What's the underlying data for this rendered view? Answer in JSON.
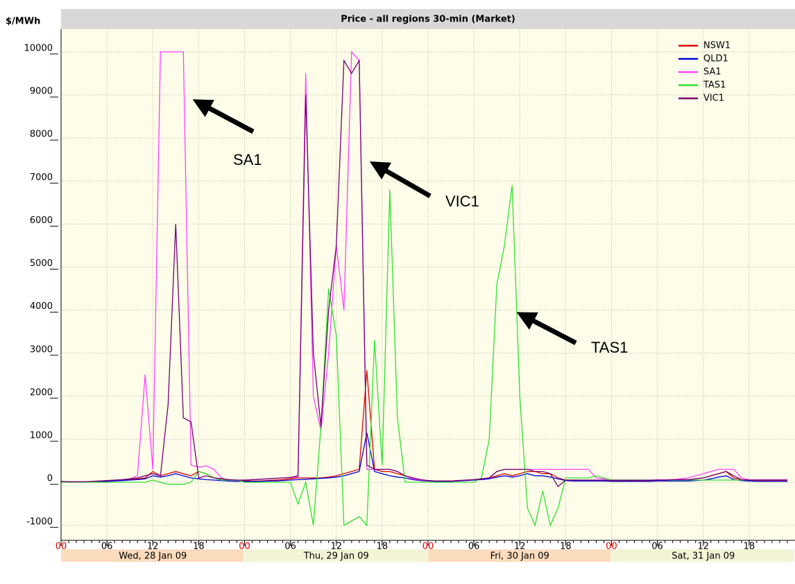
{
  "chart_data": {
    "type": "line",
    "title": "Price - all regions 30-min (Market)",
    "y_label": "$/MWh",
    "x": [
      0,
      1,
      2,
      3,
      4,
      5,
      6,
      7,
      8,
      9,
      10,
      11,
      12,
      13,
      14,
      15,
      16,
      17,
      18,
      19,
      20,
      21,
      22,
      23,
      24,
      25,
      26,
      27,
      28,
      29,
      30,
      31,
      32,
      33,
      34,
      35,
      36,
      37,
      38,
      39,
      40,
      41,
      42,
      43,
      44,
      45,
      46,
      47,
      48,
      49,
      50,
      51,
      52,
      53,
      54,
      55,
      56,
      57,
      58,
      59,
      60,
      61,
      62,
      63,
      64,
      65,
      66,
      67,
      68,
      69,
      70,
      71,
      72,
      73,
      74,
      75,
      76,
      77,
      78,
      79,
      80,
      81,
      82,
      83,
      84,
      85,
      86,
      87,
      88,
      89,
      90,
      91,
      92,
      93,
      94,
      95
    ],
    "series": [
      {
        "name": "NSW1",
        "color": "#e00000",
        "values": [
          20,
          10,
          10,
          10,
          10,
          20,
          30,
          40,
          50,
          60,
          80,
          100,
          250,
          150,
          200,
          250,
          200,
          150,
          250,
          200,
          100,
          80,
          60,
          50,
          40,
          30,
          30,
          40,
          50,
          60,
          80,
          100,
          100,
          100,
          100,
          120,
          150,
          200,
          250,
          300,
          2600,
          300,
          250,
          250,
          200,
          150,
          100,
          60,
          40,
          30,
          30,
          30,
          40,
          50,
          60,
          80,
          100,
          150,
          200,
          150,
          200,
          250,
          250,
          200,
          200,
          100,
          50,
          50,
          50,
          40,
          40,
          40,
          30,
          30,
          30,
          30,
          30,
          40,
          50,
          50,
          60,
          60,
          60,
          80,
          100,
          150,
          200,
          250,
          100,
          60,
          50,
          40,
          40,
          40,
          40,
          40
        ]
      },
      {
        "name": "QLD1",
        "color": "#0000e0",
        "values": [
          20,
          10,
          10,
          10,
          10,
          20,
          20,
          30,
          40,
          50,
          60,
          80,
          150,
          120,
          150,
          200,
          150,
          100,
          80,
          60,
          50,
          40,
          30,
          20,
          20,
          20,
          20,
          30,
          30,
          40,
          50,
          60,
          70,
          80,
          90,
          100,
          120,
          150,
          200,
          250,
          1150,
          250,
          200,
          150,
          120,
          100,
          60,
          40,
          30,
          20,
          20,
          20,
          30,
          40,
          50,
          60,
          80,
          120,
          150,
          120,
          150,
          200,
          150,
          150,
          120,
          80,
          40,
          30,
          30,
          30,
          30,
          30,
          20,
          20,
          20,
          20,
          20,
          20,
          30,
          30,
          30,
          30,
          30,
          40,
          50,
          80,
          120,
          150,
          60,
          40,
          30,
          20,
          20,
          20,
          20,
          20
        ]
      },
      {
        "name": "SA1",
        "color": "#ff40ff",
        "values": [
          20,
          10,
          10,
          10,
          20,
          30,
          40,
          50,
          60,
          80,
          150,
          2500,
          300,
          10000,
          10000,
          10000,
          10000,
          400,
          350,
          380,
          300,
          100,
          50,
          50,
          50,
          60,
          70,
          80,
          90,
          100,
          110,
          120,
          9500,
          2000,
          1200,
          3000,
          5500,
          4000,
          10000,
          9800,
          300,
          300,
          300,
          300,
          250,
          150,
          80,
          50,
          40,
          30,
          30,
          30,
          40,
          50,
          60,
          80,
          100,
          250,
          300,
          300,
          300,
          300,
          300,
          300,
          300,
          300,
          300,
          300,
          300,
          300,
          100,
          80,
          60,
          60,
          60,
          60,
          60,
          60,
          60,
          60,
          60,
          80,
          100,
          150,
          200,
          250,
          300,
          300,
          300,
          100,
          60,
          60,
          60,
          60,
          60,
          60
        ]
      },
      {
        "name": "TAS1",
        "color": "#30e030",
        "values": [
          0,
          0,
          0,
          0,
          0,
          0,
          0,
          0,
          0,
          0,
          0,
          0,
          50,
          0,
          -50,
          -50,
          -50,
          0,
          250,
          200,
          100,
          50,
          50,
          50,
          0,
          0,
          0,
          0,
          0,
          0,
          0,
          -500,
          0,
          -1000,
          1300,
          4500,
          3400,
          -1000,
          -900,
          -800,
          -1000,
          3300,
          400,
          6800,
          1500,
          0,
          0,
          0,
          0,
          0,
          0,
          0,
          0,
          0,
          0,
          100,
          1000,
          4600,
          5500,
          6900,
          2000,
          -600,
          -1000,
          -200,
          -1000,
          -600,
          100,
          100,
          100,
          100,
          150,
          100,
          50,
          50,
          50,
          50,
          50,
          50,
          50,
          50,
          50,
          50,
          50,
          50,
          50,
          50,
          50,
          50,
          50,
          50,
          50,
          50,
          50,
          50,
          50,
          50
        ]
      },
      {
        "name": "VIC1",
        "color": "#700070",
        "values": [
          20,
          10,
          10,
          10,
          20,
          30,
          40,
          50,
          60,
          80,
          100,
          150,
          200,
          150,
          1800,
          6000,
          1500,
          1400,
          100,
          150,
          100,
          80,
          60,
          50,
          50,
          60,
          70,
          80,
          90,
          100,
          110,
          150,
          9000,
          3000,
          1300,
          4000,
          5500,
          9800,
          9500,
          9800,
          400,
          300,
          300,
          300,
          250,
          150,
          100,
          60,
          40,
          30,
          30,
          30,
          40,
          50,
          60,
          80,
          100,
          250,
          300,
          300,
          300,
          300,
          250,
          250,
          200,
          -100,
          50,
          50,
          50,
          50,
          50,
          50,
          40,
          40,
          40,
          40,
          40,
          40,
          50,
          50,
          60,
          60,
          60,
          80,
          100,
          150,
          200,
          250,
          150,
          60,
          50,
          50,
          50,
          50,
          50,
          50
        ]
      }
    ],
    "xlim": [
      0,
      96
    ],
    "xticks": [
      {
        "value": 0,
        "label": "00"
      },
      {
        "value": 6,
        "label": "06"
      },
      {
        "value": 12,
        "label": "12"
      },
      {
        "value": 18,
        "label": "18"
      },
      {
        "value": 24,
        "label": "00"
      },
      {
        "value": 30,
        "label": "06"
      },
      {
        "value": 36,
        "label": "12"
      },
      {
        "value": 42,
        "label": "18"
      },
      {
        "value": 48,
        "label": "00"
      },
      {
        "value": 54,
        "label": "06"
      },
      {
        "value": 60,
        "label": "12"
      },
      {
        "value": 66,
        "label": "18"
      },
      {
        "value": 72,
        "label": "00"
      },
      {
        "value": 78,
        "label": "06"
      },
      {
        "value": 84,
        "label": "12"
      },
      {
        "value": 90,
        "label": "18"
      }
    ],
    "x_groups": [
      "Wed, 28 Jan 09",
      "Thu, 29 Jan 09",
      "Fri, 30 Jan 09",
      "Sat, 31 Jan 09"
    ],
    "ylim": [
      -1350,
      10530
    ],
    "yticks": [
      -1000,
      0,
      1000,
      2000,
      3000,
      4000,
      5000,
      6000,
      7000,
      8000,
      9000,
      10000
    ],
    "grid": true,
    "legend": "top-right",
    "annotations": [
      "SA1",
      "VIC1",
      "TAS1"
    ]
  }
}
